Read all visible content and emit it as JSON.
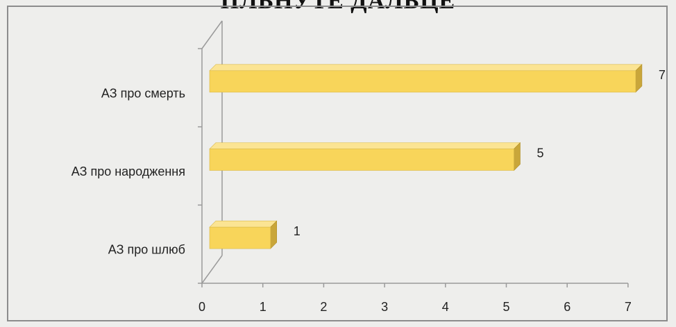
{
  "heading_fragment": "ПЛЬНУТЕ ДАЛЬЦЕ",
  "colors": {
    "bar_front": "#f8d55a",
    "bar_top": "#fbe493",
    "bar_side": "#c9a63a",
    "axis": "#9a9a9a",
    "background": "#eeeeec"
  },
  "chart_data": {
    "type": "bar",
    "orientation": "horizontal",
    "style": "3d",
    "categories": [
      "АЗ про смерть",
      "АЗ про народження",
      "АЗ про шлюб"
    ],
    "values": [
      7,
      5,
      1
    ],
    "data_labels": [
      "7",
      "5",
      "1"
    ],
    "x_ticks": [
      "0",
      "1",
      "2",
      "3",
      "4",
      "5",
      "6",
      "7"
    ],
    "xlim": [
      0,
      7
    ],
    "grid": false,
    "legend": "none"
  }
}
